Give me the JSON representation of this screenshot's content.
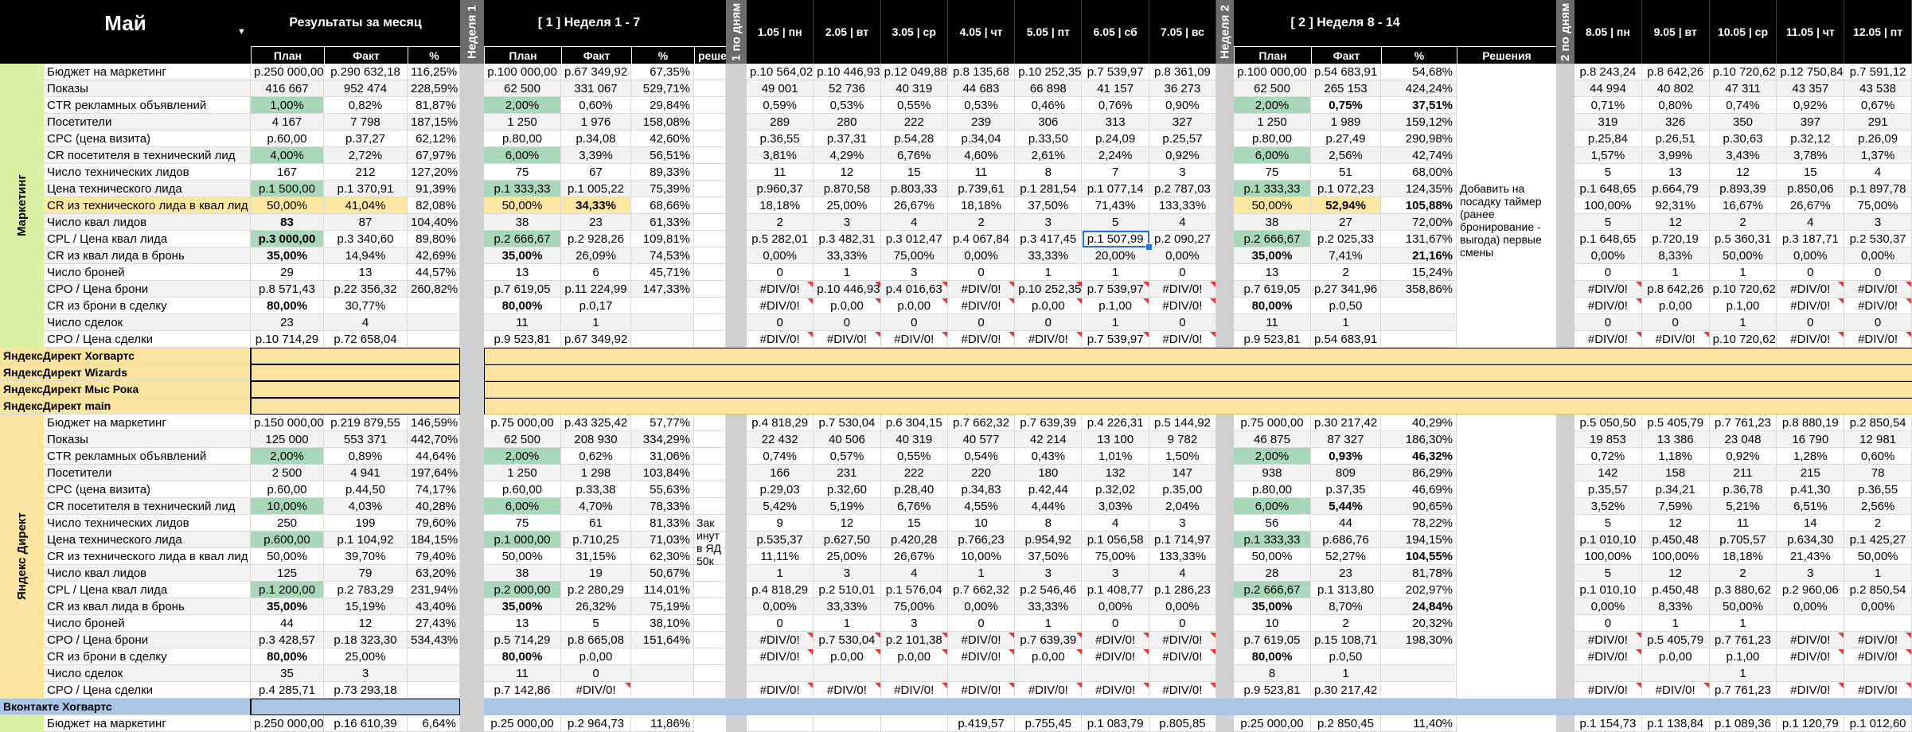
{
  "colors": {
    "green": "#a8d8b9",
    "yellow": "#fce8a3",
    "blue": "#a9c5e8",
    "greenLabel": "#d9f0a3",
    "yellowLabel": "#fbe4a0",
    "gray": "#f2f2f2",
    "header": "#000000",
    "separator": "#d0d0d0",
    "errorFlag": "#e53935",
    "selection": "#1a73e8"
  },
  "header": {
    "month": "Май",
    "results_title": "Результаты за месяц",
    "week1_side": "Неделя 1",
    "week1_title": "[ 1 ] Неделя 1 - 7",
    "daily1_side": "1 по дням",
    "week2_side": "Неделя 2",
    "week2_title": "[ 2 ] Неделя 8 - 14",
    "daily2_side": "2 по дням",
    "plan": "План",
    "fact": "Факт",
    "pct": "%",
    "decisions": "Решения",
    "decisions_cut": "решен",
    "days1": [
      "1.05 | пн",
      "2.05 | вт",
      "3.05 | ср",
      "4.05 | чт",
      "5.05 | пт",
      "6.05 | сб",
      "7.05 | вс"
    ],
    "days2": [
      "8.05 | пн",
      "9.05 | вт",
      "10.05 | ср",
      "11.05 | чт",
      "12.05 | пт"
    ]
  },
  "metrics": [
    "Бюджет на маркетинг",
    "Показы",
    "CTR рекламных объявлений",
    "Посетители",
    "CPC (цена визита)",
    "CR посетителя в технический лид",
    "Число технических лидов",
    "Цена технического лида",
    "CR из технического лида в квал лид",
    "Число  квал лидов",
    "CPL / Цена квал лида",
    "CR из квал лида в бронь",
    "Число броней",
    "CPO / Цена брони",
    "CR из брони в сделку",
    "Число сделок",
    "CPO / Цена сделки"
  ],
  "section_labels": {
    "marketing": "Маркетинг",
    "yandex": "Яндекс Директ"
  },
  "groups": [
    "ЯндексДирект Хогвартс",
    "ЯндексДирект Wizards",
    "ЯндексДирект Мыс Рока",
    "ЯндексДирект main"
  ],
  "vk_group": "Вконтакте Хогвартс",
  "marketing_note": "Добавить на посадку таймер (ранее бронирование - выгода) первые смены",
  "yandex_note": "Зак инут в ЯД 50к",
  "marketing": {
    "month": [
      [
        "р.250 000,00",
        "р.290 632,18",
        "116,25%"
      ],
      [
        "416 667",
        "952 474",
        "228,59%"
      ],
      [
        "1,00%",
        "0,82%",
        "81,87%"
      ],
      [
        "4 167",
        "7 798",
        "187,15%"
      ],
      [
        "р.60,00",
        "р.37,27",
        "62,12%"
      ],
      [
        "4,00%",
        "2,72%",
        "67,97%"
      ],
      [
        "167",
        "212",
        "127,20%"
      ],
      [
        "р.1 500,00",
        "р.1 370,91",
        "91,39%"
      ],
      [
        "50,00%",
        "41,04%",
        "82,08%"
      ],
      [
        "83",
        "87",
        "104,40%"
      ],
      [
        "р.3 000,00",
        "р.3 340,60",
        "89,80%"
      ],
      [
        "35,00%",
        "14,94%",
        "42,69%"
      ],
      [
        "29",
        "13",
        "44,57%"
      ],
      [
        "р.8 571,43",
        "р.22 356,32",
        "260,82%"
      ],
      [
        "80,00%",
        "30,77%",
        ""
      ],
      [
        "23",
        "4",
        ""
      ],
      [
        "р.10 714,29",
        "р.72 658,04",
        ""
      ]
    ],
    "week1": [
      [
        "р.100 000,00",
        "р.67 349,92",
        "67,35%"
      ],
      [
        "62 500",
        "331 067",
        "529,71%"
      ],
      [
        "2,00%",
        "0,60%",
        "29,84%"
      ],
      [
        "1 250",
        "1 976",
        "158,08%"
      ],
      [
        "р.80,00",
        "р.34,08",
        "42,60%"
      ],
      [
        "6,00%",
        "3,39%",
        "56,51%"
      ],
      [
        "75",
        "67",
        "89,33%"
      ],
      [
        "р.1 333,33",
        "р.1 005,22",
        "75,39%"
      ],
      [
        "50,00%",
        "34,33%",
        "68,66%"
      ],
      [
        "38",
        "23",
        "61,33%"
      ],
      [
        "р.2 666,67",
        "р.2 928,26",
        "109,81%"
      ],
      [
        "35,00%",
        "26,09%",
        "74,53%"
      ],
      [
        "13",
        "6",
        "45,71%"
      ],
      [
        "р.7 619,05",
        "р.11 224,99",
        "147,33%"
      ],
      [
        "80,00%",
        "р.0,17",
        ""
      ],
      [
        "11",
        "1",
        ""
      ],
      [
        "р.9 523,81",
        "р.67 349,92",
        ""
      ]
    ],
    "days1": [
      [
        "р.10 564,02",
        "р.10 446,93",
        "р.12 049,88",
        "р.8 135,68",
        "р.10 252,35",
        "р.7 539,97",
        "р.8 361,09"
      ],
      [
        "49 001",
        "52 736",
        "40 319",
        "44 683",
        "66 898",
        "41 157",
        "36 273"
      ],
      [
        "0,59%",
        "0,53%",
        "0,55%",
        "0,53%",
        "0,46%",
        "0,76%",
        "0,90%"
      ],
      [
        "289",
        "280",
        "222",
        "239",
        "306",
        "313",
        "327"
      ],
      [
        "р.36,55",
        "р.37,31",
        "р.54,28",
        "р.34,04",
        "р.33,50",
        "р.24,09",
        "р.25,57"
      ],
      [
        "3,81%",
        "4,29%",
        "6,76%",
        "4,60%",
        "2,61%",
        "2,24%",
        "0,92%"
      ],
      [
        "11",
        "12",
        "15",
        "11",
        "8",
        "7",
        "3"
      ],
      [
        "р.960,37",
        "р.870,58",
        "р.803,33",
        "р.739,61",
        "р.1 281,54",
        "р.1 077,14",
        "р.2 787,03"
      ],
      [
        "18,18%",
        "25,00%",
        "26,67%",
        "18,18%",
        "37,50%",
        "71,43%",
        "133,33%"
      ],
      [
        "2",
        "3",
        "4",
        "2",
        "3",
        "5",
        "4"
      ],
      [
        "р.5 282,01",
        "р.3 482,31",
        "р.3 012,47",
        "р.4 067,84",
        "р.3 417,45",
        "р.1 507,99",
        "р.2 090,27"
      ],
      [
        "0,00%",
        "33,33%",
        "75,00%",
        "0,00%",
        "33,33%",
        "20,00%",
        "0,00%"
      ],
      [
        "0",
        "1",
        "3",
        "0",
        "1",
        "1",
        "0"
      ],
      [
        "#DIV/0!",
        "р.10 446,93",
        "р.4 016,63",
        "#DIV/0!",
        "р.10 252,35",
        "р.7 539,97",
        "#DIV/0!"
      ],
      [
        "#DIV/0!",
        "р.0,00",
        "р.0,00",
        "#DIV/0!",
        "р.0,00",
        "р.1,00",
        "#DIV/0!"
      ],
      [
        "0",
        "0",
        "0",
        "0",
        "0",
        "1",
        "0"
      ],
      [
        "#DIV/0!",
        "#DIV/0!",
        "#DIV/0!",
        "#DIV/0!",
        "#DIV/0!",
        "р.7 539,97",
        "#DIV/0!"
      ]
    ],
    "week2": [
      [
        "р.100 000,00",
        "р.54 683,91",
        "54,68%"
      ],
      [
        "62 500",
        "265 153",
        "424,24%"
      ],
      [
        "2,00%",
        "0,75%",
        "37,51%"
      ],
      [
        "1 250",
        "1 989",
        "159,12%"
      ],
      [
        "р.80,00",
        "р.27,49",
        "290,98%"
      ],
      [
        "6,00%",
        "2,56%",
        "42,74%"
      ],
      [
        "75",
        "51",
        "68,00%"
      ],
      [
        "р.1 333,33",
        "р.1 072,23",
        "124,35%"
      ],
      [
        "50,00%",
        "52,94%",
        "105,88%"
      ],
      [
        "38",
        "27",
        "72,00%"
      ],
      [
        "р.2 666,67",
        "р.2 025,33",
        "131,67%"
      ],
      [
        "35,00%",
        "7,41%",
        "21,16%"
      ],
      [
        "13",
        "2",
        "15,24%"
      ],
      [
        "р.7 619,05",
        "р.27 341,96",
        "358,86%"
      ],
      [
        "80,00%",
        "р.0,50",
        ""
      ],
      [
        "11",
        "1",
        ""
      ],
      [
        "р.9 523,81",
        "р.54 683,91",
        ""
      ]
    ],
    "days2": [
      [
        "р.8 243,24",
        "р.8 642,26",
        "р.10 720,62",
        "р.12 750,84",
        "р.7 591,12"
      ],
      [
        "44 994",
        "40 802",
        "47 311",
        "43 357",
        "43 538"
      ],
      [
        "0,71%",
        "0,80%",
        "0,74%",
        "0,92%",
        "0,67%"
      ],
      [
        "319",
        "326",
        "350",
        "397",
        "291"
      ],
      [
        "р.25,84",
        "р.26,51",
        "р.30,63",
        "р.32,12",
        "р.26,09"
      ],
      [
        "1,57%",
        "3,99%",
        "3,43%",
        "3,78%",
        "1,37%"
      ],
      [
        "5",
        "13",
        "12",
        "15",
        "4"
      ],
      [
        "р.1 648,65",
        "р.664,79",
        "р.893,39",
        "р.850,06",
        "р.1 897,78"
      ],
      [
        "100,00%",
        "92,31%",
        "16,67%",
        "26,67%",
        "75,00%"
      ],
      [
        "5",
        "12",
        "2",
        "4",
        "3"
      ],
      [
        "р.1 648,65",
        "р.720,19",
        "р.5 360,31",
        "р.3 187,71",
        "р.2 530,37"
      ],
      [
        "0,00%",
        "8,33%",
        "50,00%",
        "0,00%",
        "0,00%"
      ],
      [
        "0",
        "1",
        "1",
        "0",
        "0"
      ],
      [
        "#DIV/0!",
        "р.8 642,26",
        "р.10 720,62",
        "#DIV/0!",
        "#DIV/0!"
      ],
      [
        "#DIV/0!",
        "р.0,00",
        "р.1,00",
        "#DIV/0!",
        "#DIV/0!"
      ],
      [
        "0",
        "0",
        "1",
        "0",
        "0"
      ],
      [
        "#DIV/0!",
        "#DIV/0!",
        "р.10 720,62",
        "#DIV/0!",
        "#DIV/0!"
      ]
    ]
  },
  "yandex": {
    "month": [
      [
        "р.150 000,00",
        "р.219 879,55",
        "146,59%"
      ],
      [
        "125 000",
        "553 371",
        "442,70%"
      ],
      [
        "2,00%",
        "0,89%",
        "44,64%"
      ],
      [
        "2 500",
        "4 941",
        "197,64%"
      ],
      [
        "р.60,00",
        "р.44,50",
        "74,17%"
      ],
      [
        "10,00%",
        "4,03%",
        "40,28%"
      ],
      [
        "250",
        "199",
        "79,60%"
      ],
      [
        "р.600,00",
        "р.1 104,92",
        "184,15%"
      ],
      [
        "50,00%",
        "39,70%",
        "79,40%"
      ],
      [
        "125",
        "79",
        "63,20%"
      ],
      [
        "р.1 200,00",
        "р.2 783,29",
        "231,94%"
      ],
      [
        "35,00%",
        "15,19%",
        "43,40%"
      ],
      [
        "44",
        "12",
        "27,43%"
      ],
      [
        "р.3 428,57",
        "р.18 323,30",
        "534,43%"
      ],
      [
        "80,00%",
        "25,00%",
        ""
      ],
      [
        "35",
        "3",
        ""
      ],
      [
        "р.4 285,71",
        "р.73 293,18",
        ""
      ]
    ],
    "week1": [
      [
        "р.75 000,00",
        "р.43 325,42",
        "57,77%"
      ],
      [
        "62 500",
        "208 930",
        "334,29%"
      ],
      [
        "2,00%",
        "0,62%",
        "31,06%"
      ],
      [
        "1 250",
        "1 298",
        "103,84%"
      ],
      [
        "р.60,00",
        "р.33,38",
        "55,63%"
      ],
      [
        "6,00%",
        "4,70%",
        "78,33%"
      ],
      [
        "75",
        "61",
        "81,33%"
      ],
      [
        "р.1 000,00",
        "р.710,25",
        "71,03%"
      ],
      [
        "50,00%",
        "31,15%",
        "62,30%"
      ],
      [
        "38",
        "19",
        "50,67%"
      ],
      [
        "р.2 000,00",
        "р.2 280,29",
        "114,01%"
      ],
      [
        "35,00%",
        "26,32%",
        "75,19%"
      ],
      [
        "13",
        "5",
        "38,10%"
      ],
      [
        "р.5 714,29",
        "р.8 665,08",
        "151,64%"
      ],
      [
        "80,00%",
        "р.0,00",
        ""
      ],
      [
        "11",
        "0",
        ""
      ],
      [
        "р.7 142,86",
        "#DIV/0!",
        ""
      ]
    ],
    "days1": [
      [
        "р.4 818,29",
        "р.7 530,04",
        "р.6 304,15",
        "р.7 662,32",
        "р.7 639,39",
        "р.4 226,31",
        "р.5 144,92"
      ],
      [
        "22 432",
        "40 506",
        "40 319",
        "40 577",
        "42 214",
        "13 100",
        "9 782"
      ],
      [
        "0,74%",
        "0,57%",
        "0,55%",
        "0,54%",
        "0,43%",
        "1,01%",
        "1,50%"
      ],
      [
        "166",
        "231",
        "222",
        "220",
        "180",
        "132",
        "147"
      ],
      [
        "р.29,03",
        "р.32,60",
        "р.28,40",
        "р.34,83",
        "р.42,44",
        "р.32,02",
        "р.35,00"
      ],
      [
        "5,42%",
        "5,19%",
        "6,76%",
        "4,55%",
        "4,44%",
        "3,03%",
        "2,04%"
      ],
      [
        "9",
        "12",
        "15",
        "10",
        "8",
        "4",
        "3"
      ],
      [
        "р.535,37",
        "р.627,50",
        "р.420,28",
        "р.766,23",
        "р.954,92",
        "р.1 056,58",
        "р.1 714,97"
      ],
      [
        "11,11%",
        "25,00%",
        "26,67%",
        "10,00%",
        "37,50%",
        "75,00%",
        "133,33%"
      ],
      [
        "1",
        "3",
        "4",
        "1",
        "3",
        "3",
        "4"
      ],
      [
        "р.4 818,29",
        "р.2 510,01",
        "р.1 576,04",
        "р.7 662,32",
        "р.2 546,46",
        "р.1 408,77",
        "р.1 286,23"
      ],
      [
        "0,00%",
        "33,33%",
        "75,00%",
        "0,00%",
        "33,33%",
        "0,00%",
        "0,00%"
      ],
      [
        "0",
        "1",
        "3",
        "0",
        "1",
        "0",
        "0"
      ],
      [
        "#DIV/0!",
        "р.7 530,04",
        "р.2 101,38",
        "#DIV/0!",
        "р.7 639,39",
        "#DIV/0!",
        "#DIV/0!"
      ],
      [
        "#DIV/0!",
        "р.0,00",
        "р.0,00",
        "#DIV/0!",
        "р.0,00",
        "#DIV/0!",
        "#DIV/0!"
      ],
      [
        "",
        "",
        "",
        "",
        "",
        "",
        ""
      ],
      [
        "#DIV/0!",
        "#DIV/0!",
        "#DIV/0!",
        "#DIV/0!",
        "#DIV/0!",
        "#DIV/0!",
        "#DIV/0!"
      ]
    ],
    "week2": [
      [
        "р.75 000,00",
        "р.30 217,42",
        "40,29%"
      ],
      [
        "46 875",
        "87 327",
        "186,30%"
      ],
      [
        "2,00%",
        "0,93%",
        "46,32%"
      ],
      [
        "938",
        "809",
        "86,29%"
      ],
      [
        "р.80,00",
        "р.37,35",
        "46,69%"
      ],
      [
        "6,00%",
        "5,44%",
        "90,65%"
      ],
      [
        "56",
        "44",
        "78,22%"
      ],
      [
        "р.1 333,33",
        "р.686,76",
        "194,15%"
      ],
      [
        "50,00%",
        "52,27%",
        "104,55%"
      ],
      [
        "28",
        "23",
        "81,78%"
      ],
      [
        "р.2 666,67",
        "р.1 313,80",
        "202,97%"
      ],
      [
        "35,00%",
        "8,70%",
        "24,84%"
      ],
      [
        "10",
        "2",
        "20,32%"
      ],
      [
        "р.7 619,05",
        "р.15 108,71",
        "198,30%"
      ],
      [
        "80,00%",
        "р.0,50",
        ""
      ],
      [
        "8",
        "1",
        ""
      ],
      [
        "р.9 523,81",
        "р.30 217,42",
        ""
      ]
    ],
    "days2": [
      [
        "р.5 050,50",
        "р.5 405,79",
        "р.7 761,23",
        "р.8 880,19",
        "р.2 850,54"
      ],
      [
        "19 853",
        "13 386",
        "23 048",
        "16 790",
        "12 981"
      ],
      [
        "0,72%",
        "1,18%",
        "0,92%",
        "1,28%",
        "0,60%"
      ],
      [
        "142",
        "158",
        "211",
        "215",
        "78"
      ],
      [
        "р.35,57",
        "р.34,21",
        "р.36,78",
        "р.41,30",
        "р.36,55"
      ],
      [
        "3,52%",
        "7,59%",
        "5,21%",
        "6,51%",
        "2,56%"
      ],
      [
        "5",
        "12",
        "11",
        "14",
        "2"
      ],
      [
        "р.1 010,10",
        "р.450,48",
        "р.705,57",
        "р.634,30",
        "р.1 425,27"
      ],
      [
        "100,00%",
        "100,00%",
        "18,18%",
        "21,43%",
        "50,00%"
      ],
      [
        "5",
        "12",
        "2",
        "3",
        "1"
      ],
      [
        "р.1 010,10",
        "р.450,48",
        "р.3 880,62",
        "р.2 960,06",
        "р.2 850,54"
      ],
      [
        "0,00%",
        "8,33%",
        "50,00%",
        "0,00%",
        "0,00%"
      ],
      [
        "0",
        "1",
        "1",
        "",
        ""
      ],
      [
        "#DIV/0!",
        "р.5 405,79",
        "р.7 761,23",
        "#DIV/0!",
        "#DIV/0!"
      ],
      [
        "#DIV/0!",
        "р.0,00",
        "р.1,00",
        "#DIV/0!",
        "#DIV/0!"
      ],
      [
        "",
        "",
        "1",
        "",
        ""
      ],
      [
        "#DIV/0!",
        "#DIV/0!",
        "р.7 761,23",
        "#DIV/0!",
        "#DIV/0!"
      ]
    ]
  },
  "vk_partial": {
    "metric": "Бюджет на маркетинг",
    "month": [
      "р.250 000,00",
      "р.16 610,39",
      "6,64%"
    ],
    "week1": [
      "р.25 000,00",
      "р.2 964,73",
      "11,86%"
    ],
    "days1": [
      "",
      "",
      "",
      "р.419,57",
      "р.755,45",
      "р.1 083,79",
      "р.805,85"
    ],
    "week2": [
      "р.25 000,00",
      "р.2 850,45",
      "11,40%"
    ],
    "days2": [
      "р.1 154,73",
      "р.1 138,84",
      "р.1 089,36",
      "р.1 120,79",
      "р.1 012,60"
    ]
  }
}
